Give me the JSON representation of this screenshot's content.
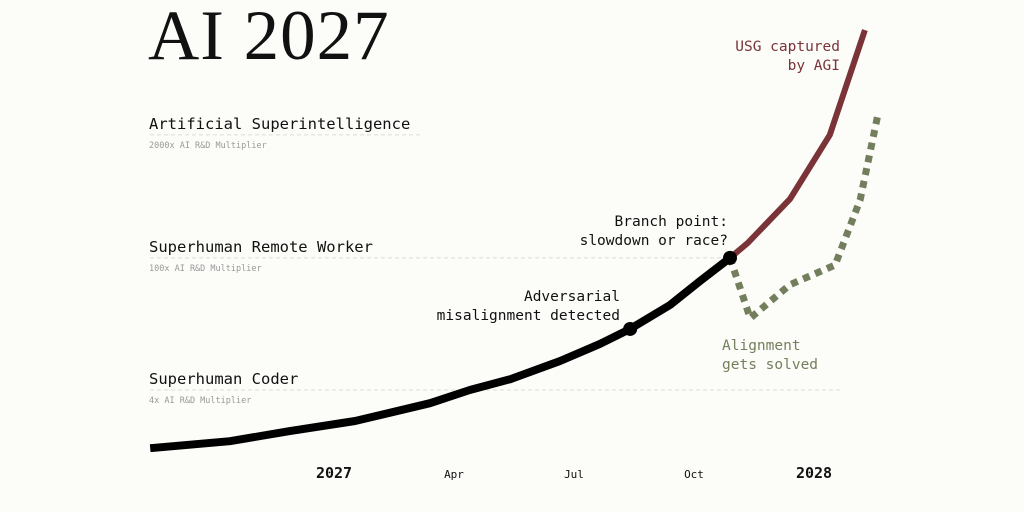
{
  "title": "AI 2027",
  "chart_data": {
    "type": "line",
    "title": "AI 2027",
    "x_unit": "year",
    "y_scale": "log",
    "y_unit": "AI R&D multiplier",
    "grid": false,
    "x_ticks": [
      {
        "value": 2027.0,
        "label": "2027",
        "bold": true
      },
      {
        "value": 2027.25,
        "label": "Apr",
        "bold": false
      },
      {
        "value": 2027.5,
        "label": "Jul",
        "bold": false
      },
      {
        "value": 2027.75,
        "label": "Oct",
        "bold": false
      },
      {
        "value": 2028.0,
        "label": "2028",
        "bold": true
      }
    ],
    "levels": [
      {
        "name": "Superhuman Coder",
        "sublabel": "4x AI R&D Multiplier",
        "value": 4
      },
      {
        "name": "Superhuman Remote Worker",
        "sublabel": "100x AI R&D Multiplier",
        "value": 100
      },
      {
        "name": "Artificial Superintelligence",
        "sublabel": "2000x AI R&D Multiplier",
        "value": 2000
      }
    ],
    "series": [
      {
        "id": "main",
        "color": "#000000",
        "style": "solid",
        "x": [
          2026.617,
          2026.783,
          2026.908,
          2027.044,
          2027.2,
          2027.283,
          2027.367,
          2027.471,
          2027.554,
          2027.617,
          2027.7,
          2027.763,
          2027.825
        ],
        "y": [
          0.97,
          1.15,
          1.47,
          1.88,
          2.9,
          4,
          5.2,
          8.1,
          12.3,
          17.7,
          31.7,
          57,
          100
        ]
      },
      {
        "id": "race",
        "name": "USG captured by AGI",
        "color": "#7a3438",
        "style": "solid",
        "x": [
          2027.825,
          2027.862,
          2027.95,
          2028.033,
          2028.106
        ],
        "y": [
          100,
          144,
          420,
          2000,
          25700
        ]
      },
      {
        "id": "slowdown",
        "name": "Alignment gets solved",
        "color": "#737f5c",
        "style": "dotted",
        "x": [
          2027.825,
          2027.867,
          2027.95,
          2028.044,
          2028.096,
          2028.133
        ],
        "y": [
          100,
          23,
          52,
          84,
          410,
          3240
        ]
      }
    ],
    "annotations": [
      {
        "lines": [
          "Adversarial",
          "misalignment detected"
        ],
        "x": 2027.617,
        "y": 17.7,
        "marker": true
      },
      {
        "lines": [
          "Branch point:",
          "slowdown or race?"
        ],
        "x": 2027.825,
        "y": 100,
        "marker": true
      },
      {
        "lines": [
          "USG captured",
          "by AGI"
        ],
        "color": "#7a3438"
      },
      {
        "lines": [
          "Alignment",
          "gets solved"
        ],
        "color": "#737f5c"
      }
    ]
  }
}
